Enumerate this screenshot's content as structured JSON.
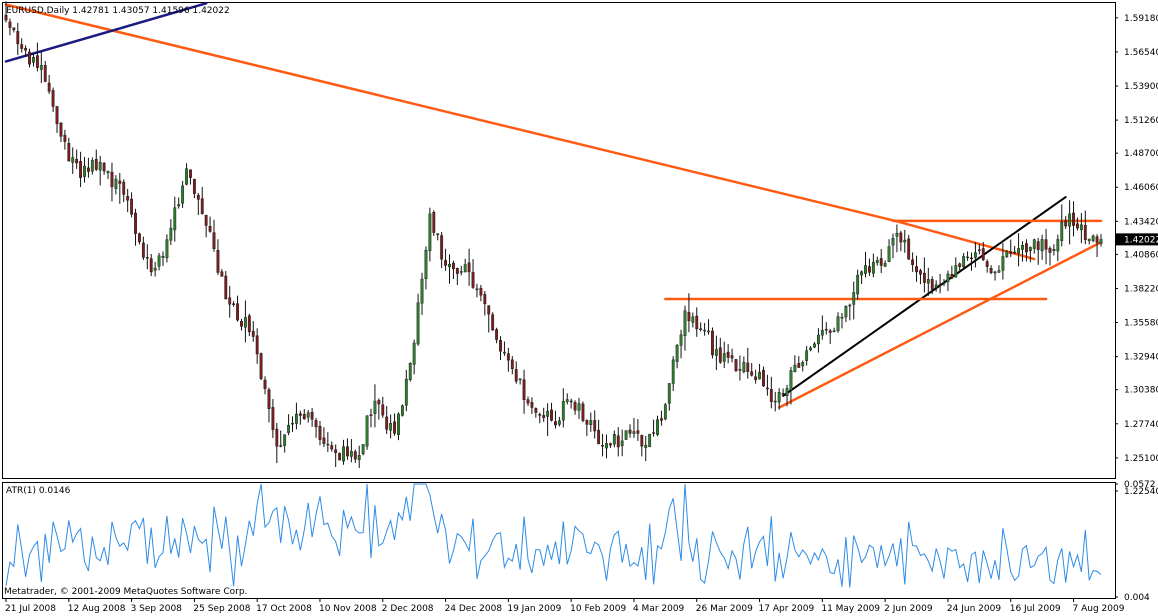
{
  "main_header": "EURUSD,Daily  1.42781 1.43057 1.41596 1.42022",
  "atr_header": "ATR(1) 0.0146",
  "copyright": "Metatrader, © 2001-2009 MetaQuotes Software Corp.",
  "colors": {
    "background": "#ffffff",
    "candle_up": "#2f7d2f",
    "candle_down": "#7a1f1f",
    "wick": "#111111",
    "trend_orange": "#ff5a14",
    "trend_navy": "#1a1a80",
    "trend_black": "#000000",
    "atr_line": "#2e8ce6",
    "price_marker": "#000000",
    "price_marker_text": "#ffffff"
  },
  "chart_data": [
    {
      "type": "candlestick",
      "title": "EURUSD,Daily",
      "header_values": {
        "open": 1.42781,
        "high": 1.43057,
        "low": 1.41596,
        "close": 1.42022
      },
      "current_price": "1.42022",
      "ylim": [
        1.2362,
        1.6025
      ],
      "y_ticks": [
        "1.59180",
        "1.56540",
        "1.53900",
        "1.51260",
        "1.48700",
        "1.46060",
        "1.43420",
        "1.40860",
        "1.38220",
        "1.35580",
        "1.32940",
        "1.30380",
        "1.27740",
        "1.25100",
        "1.22540"
      ],
      "x_tick_labels": [
        "21 Jul 2008",
        "12 Aug 2008",
        "3 Sep 2008",
        "25 Sep 2008",
        "17 Oct 2008",
        "10 Nov 2008",
        "2 Dec 2008",
        "24 Dec 2008",
        "19 Jan 2009",
        "10 Feb 2009",
        "4 Mar 2009",
        "26 Mar 2009",
        "17 Apr 2009",
        "11 May 2009",
        "2 Jun 2009",
        "24 Jun 2009",
        "16 Jul 2009",
        "7 Aug 2009"
      ],
      "anchors": [
        {
          "date": "2008-07-21",
          "close": 1.59
        },
        {
          "date": "2008-07-25",
          "close": 1.568
        },
        {
          "date": "2008-08-01",
          "close": 1.555
        },
        {
          "date": "2008-08-08",
          "close": 1.5
        },
        {
          "date": "2008-08-15",
          "close": 1.468
        },
        {
          "date": "2008-08-22",
          "close": 1.48
        },
        {
          "date": "2008-09-01",
          "close": 1.455
        },
        {
          "date": "2008-09-10",
          "close": 1.395
        },
        {
          "date": "2008-09-16",
          "close": 1.42
        },
        {
          "date": "2008-09-23",
          "close": 1.475
        },
        {
          "date": "2008-09-29",
          "close": 1.44
        },
        {
          "date": "2008-10-08",
          "close": 1.37
        },
        {
          "date": "2008-10-16",
          "close": 1.345
        },
        {
          "date": "2008-10-24",
          "close": 1.26
        },
        {
          "date": "2008-10-31",
          "close": 1.285
        },
        {
          "date": "2008-11-07",
          "close": 1.275
        },
        {
          "date": "2008-11-14",
          "close": 1.255
        },
        {
          "date": "2008-11-21",
          "close": 1.25
        },
        {
          "date": "2008-11-28",
          "close": 1.295
        },
        {
          "date": "2008-12-05",
          "close": 1.27
        },
        {
          "date": "2008-12-12",
          "close": 1.34
        },
        {
          "date": "2008-12-18",
          "close": 1.44
        },
        {
          "date": "2008-12-24",
          "close": 1.4
        },
        {
          "date": "2009-01-01",
          "close": 1.395
        },
        {
          "date": "2009-01-09",
          "close": 1.35
        },
        {
          "date": "2009-01-16",
          "close": 1.32
        },
        {
          "date": "2009-01-23",
          "close": 1.29
        },
        {
          "date": "2009-01-30",
          "close": 1.28
        },
        {
          "date": "2009-02-06",
          "close": 1.295
        },
        {
          "date": "2009-02-13",
          "close": 1.28
        },
        {
          "date": "2009-02-18",
          "close": 1.26
        },
        {
          "date": "2009-02-27",
          "close": 1.27
        },
        {
          "date": "2009-03-04",
          "close": 1.26
        },
        {
          "date": "2009-03-11",
          "close": 1.28
        },
        {
          "date": "2009-03-19",
          "close": 1.365
        },
        {
          "date": "2009-03-26",
          "close": 1.35
        },
        {
          "date": "2009-04-01",
          "close": 1.325
        },
        {
          "date": "2009-04-09",
          "close": 1.325
        },
        {
          "date": "2009-04-17",
          "close": 1.305
        },
        {
          "date": "2009-04-21",
          "close": 1.295
        },
        {
          "date": "2009-04-30",
          "close": 1.325
        },
        {
          "date": "2009-05-08",
          "close": 1.35
        },
        {
          "date": "2009-05-14",
          "close": 1.36
        },
        {
          "date": "2009-05-22",
          "close": 1.4
        },
        {
          "date": "2009-05-28",
          "close": 1.4
        },
        {
          "date": "2009-06-03",
          "close": 1.425
        },
        {
          "date": "2009-06-10",
          "close": 1.395
        },
        {
          "date": "2009-06-17",
          "close": 1.385
        },
        {
          "date": "2009-06-24",
          "close": 1.4
        },
        {
          "date": "2009-07-01",
          "close": 1.41
        },
        {
          "date": "2009-07-08",
          "close": 1.395
        },
        {
          "date": "2009-07-15",
          "close": 1.41
        },
        {
          "date": "2009-07-22",
          "close": 1.42
        },
        {
          "date": "2009-07-28",
          "close": 1.41
        },
        {
          "date": "2009-08-04",
          "close": 1.44
        },
        {
          "date": "2009-08-10",
          "close": 1.42
        },
        {
          "date": "2009-08-14",
          "close": 1.4202
        }
      ],
      "trendlines": [
        {
          "color": "trend_orange",
          "from": [
            "2008-07-21",
            1.602
          ],
          "to": [
            "2009-06-03",
            1.4342
          ]
        },
        {
          "color": "trend_orange",
          "from": [
            "2009-06-03",
            1.4342
          ],
          "to": [
            "2009-07-22",
            1.405
          ]
        },
        {
          "color": "trend_navy",
          "from": [
            "2008-07-21",
            1.558
          ],
          "to": [
            "2008-09-30",
            1.603
          ]
        },
        {
          "color": "trend_orange",
          "from": [
            "2009-04-22",
            1.29
          ],
          "to": [
            "2009-08-14",
            1.418
          ]
        },
        {
          "color": "trend_black",
          "from": [
            "2009-04-23",
            1.299
          ],
          "to": [
            "2009-08-03",
            1.453
          ]
        },
        {
          "color": "trend_orange",
          "from": [
            "2009-03-12",
            1.374
          ],
          "to": [
            "2009-07-26",
            1.374
          ]
        },
        {
          "color": "trend_orange",
          "from": [
            "2009-06-02",
            1.4345
          ],
          "to": [
            "2009-08-14",
            1.4345
          ]
        }
      ]
    },
    {
      "type": "line",
      "title": "ATR(1) 0.0146",
      "ylim": [
        0.004,
        0.0572
      ],
      "y_ticks": [
        "0.0572",
        "0.004"
      ],
      "last_value": 0.0146,
      "spikes": [
        {
          "date": "2008-10-24",
          "value": 0.046
        },
        {
          "date": "2008-11-07",
          "value": 0.043
        },
        {
          "date": "2008-12-18",
          "value": 0.052
        },
        {
          "date": "2009-03-19",
          "value": 0.0572
        },
        {
          "date": "2009-04-09",
          "value": 0.029
        },
        {
          "date": "2009-06-10",
          "value": 0.028
        }
      ]
    }
  ]
}
